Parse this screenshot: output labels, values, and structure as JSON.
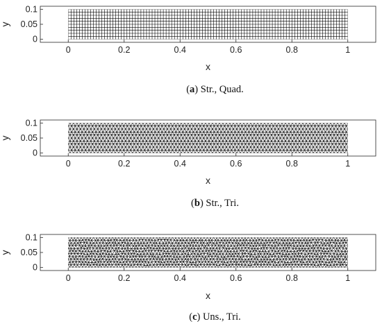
{
  "panels": [
    {
      "id": "a",
      "mesh": "structured-quad",
      "caption_open": "(",
      "caption_letter": "a",
      "caption_rest": ") Str., Quad.",
      "caption_letter_bold": true,
      "xlabel": "x",
      "ylabel": "y",
      "x_ticks": [
        "0",
        "0.2",
        "0.4",
        "0.6",
        "0.8",
        "1"
      ],
      "y_ticks": [
        "0",
        "0.05",
        "0.1"
      ],
      "xlim": [
        -0.1,
        1.1
      ],
      "ylim": [
        -0.01,
        0.11
      ]
    },
    {
      "id": "b",
      "mesh": "structured-tri",
      "caption_open": "(",
      "caption_letter": "b",
      "caption_rest": ") Str., Tri.",
      "caption_letter_bold": true,
      "xlabel": "x",
      "ylabel": "y",
      "x_ticks": [
        "0",
        "0.2",
        "0.4",
        "0.6",
        "0.8",
        "1"
      ],
      "y_ticks": [
        "0",
        "0.05",
        "0.1"
      ],
      "xlim": [
        -0.1,
        1.1
      ],
      "ylim": [
        -0.01,
        0.11
      ]
    },
    {
      "id": "c",
      "mesh": "unstructured-tri",
      "caption_open": "(",
      "caption_letter": "c",
      "caption_rest": ") Uns., Tri.",
      "caption_letter_bold": true,
      "xlabel": "x",
      "ylabel": "y",
      "x_ticks": [
        "0",
        "0.2",
        "0.4",
        "0.6",
        "0.8",
        "1"
      ],
      "y_ticks": [
        "0",
        "0.05",
        "0.1"
      ],
      "xlim": [
        -0.1,
        1.1
      ],
      "ylim": [
        -0.01,
        0.11
      ]
    }
  ],
  "mesh_domain": {
    "x": [
      0,
      1
    ],
    "y": [
      0,
      0.1
    ]
  },
  "colors": {
    "mesh_line": "#000000",
    "axes": "#262626",
    "background": "#ffffff"
  }
}
